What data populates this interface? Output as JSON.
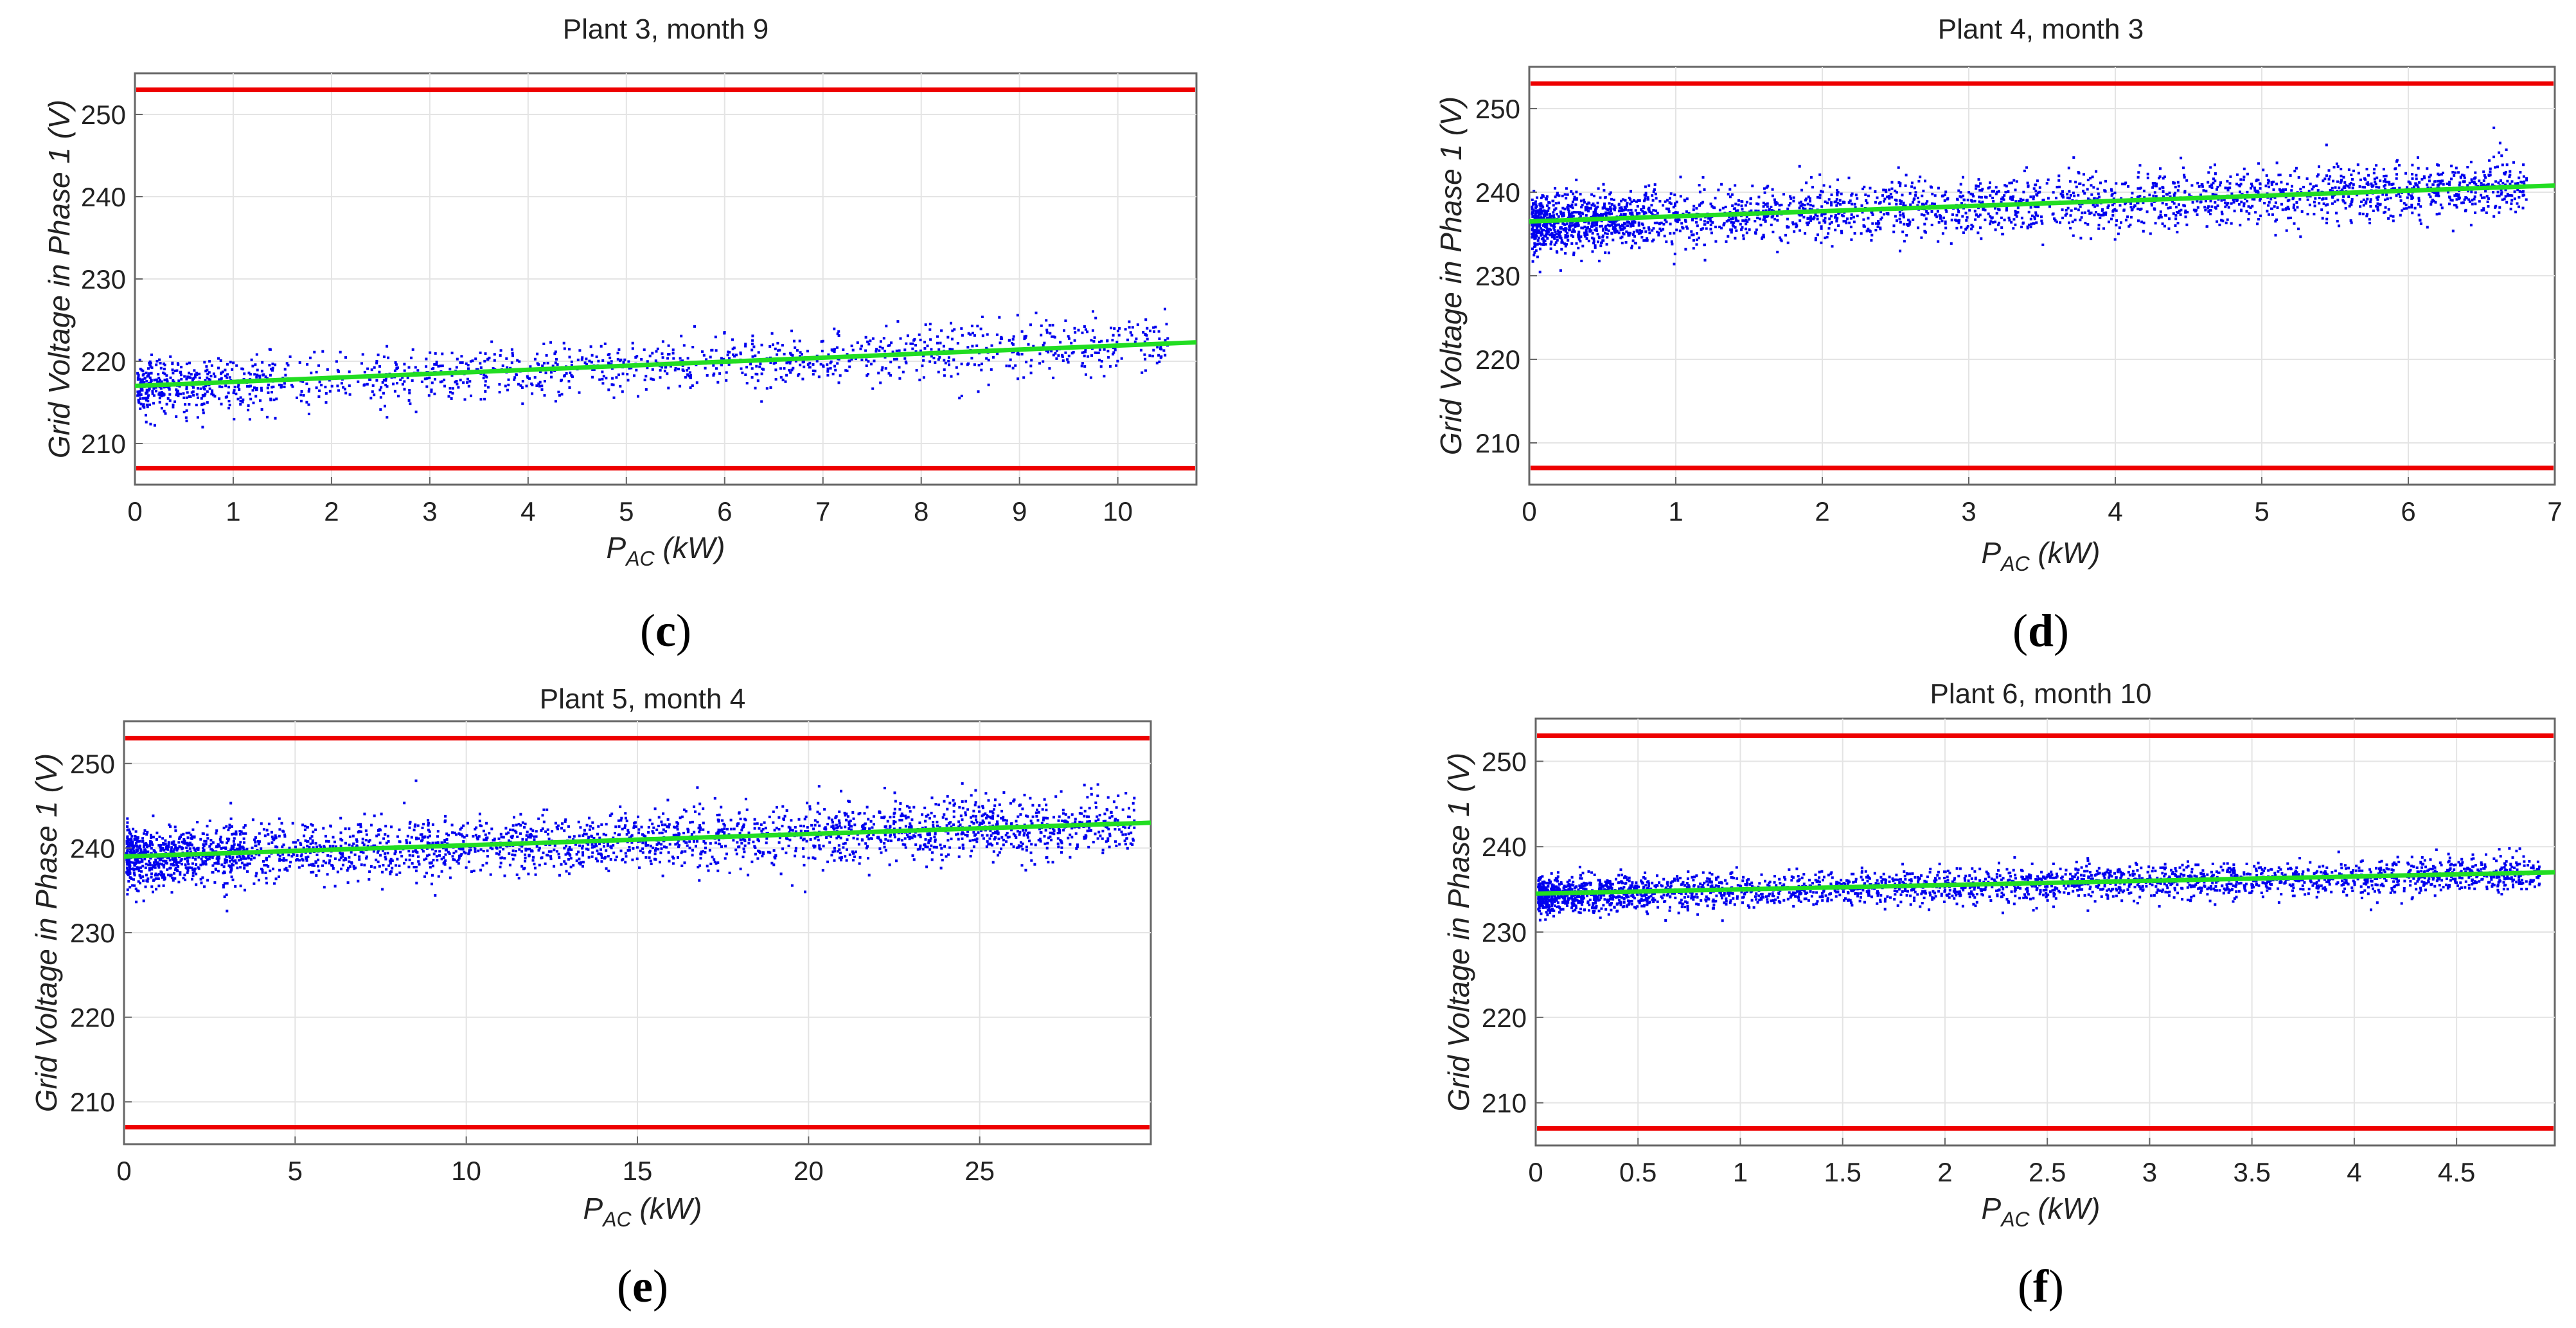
{
  "figure": {
    "background": "#ffffff"
  },
  "colors": {
    "scatter": "#0000ee",
    "fit": "#22dd22",
    "limits": "#ee0000",
    "grid": "#e4e4e4",
    "frame": "#666666"
  },
  "common": {
    "ylabel": "Grid Voltage in Phase 1 (V)",
    "xlabel_main": "P",
    "xlabel_sub": "AC",
    "xlabel_unit": " (kW)",
    "voltage_limits_V": [
      207,
      253
    ]
  },
  "panels": [
    {
      "paren_open": "(",
      "letter": "c",
      "paren_close": ")"
    },
    {
      "paren_open": "(",
      "letter": "d",
      "paren_close": ")"
    },
    {
      "paren_open": "(",
      "letter": "e",
      "paren_close": ")"
    },
    {
      "paren_open": "(",
      "letter": "f",
      "paren_close": ")"
    }
  ],
  "chart_data": [
    {
      "type": "scatter",
      "title": "Plant 3, month 9",
      "xlabel": "P_AC (kW)",
      "ylabel": "Grid Voltage in Phase 1 (V)",
      "xlim": [
        0,
        10.8
      ],
      "ylim": [
        205,
        255
      ],
      "xticks": [
        0,
        1,
        2,
        3,
        4,
        5,
        6,
        7,
        8,
        9,
        10
      ],
      "xtick_labels": [
        "0",
        "1",
        "2",
        "3",
        "4",
        "5",
        "6",
        "7",
        "8",
        "9",
        "10"
      ],
      "yticks": [
        210,
        220,
        230,
        240,
        250
      ],
      "ytick_labels": [
        "210",
        "220",
        "230",
        "240",
        "250"
      ],
      "grid": true,
      "limit_lines": [
        207,
        253
      ],
      "fit_line": {
        "x": [
          0,
          10.8
        ],
        "y": [
          217,
          222.3
        ]
      },
      "scatter_cloud": {
        "x_range": [
          0,
          10.5
        ],
        "trend_y": [
          217,
          222.3
        ],
        "spread_V": 2.2,
        "approx_points": 1500
      }
    },
    {
      "type": "scatter",
      "title": "Plant 4, month 3",
      "xlabel": "P_AC (kW)",
      "ylabel": "Grid Voltage in Phase 1 (V)",
      "xlim": [
        0,
        7
      ],
      "ylim": [
        205,
        255
      ],
      "xticks": [
        0,
        1,
        2,
        3,
        4,
        5,
        6,
        7
      ],
      "xtick_labels": [
        "0",
        "1",
        "2",
        "3",
        "4",
        "5",
        "6",
        "7"
      ],
      "yticks": [
        210,
        220,
        230,
        240,
        250
      ],
      "ytick_labels": [
        "210",
        "220",
        "230",
        "240",
        "250"
      ],
      "grid": true,
      "limit_lines": [
        207,
        253
      ],
      "fit_line": {
        "x": [
          0,
          7
        ],
        "y": [
          236.5,
          240.8
        ]
      },
      "scatter_cloud": {
        "x_range": [
          0,
          6.8
        ],
        "trend_y": [
          236.5,
          240.8
        ],
        "spread_V": 2.3,
        "approx_points": 2800
      }
    },
    {
      "type": "scatter",
      "title": "Plant 5, month 4",
      "xlabel": "P_AC (kW)",
      "ylabel": "Grid Voltage in Phase 1 (V)",
      "xlim": [
        0,
        30
      ],
      "ylim": [
        205,
        255
      ],
      "xticks": [
        0,
        5,
        10,
        15,
        20,
        25
      ],
      "xtick_labels": [
        "0",
        "5",
        "10",
        "15",
        "20",
        "25"
      ],
      "yticks": [
        210,
        220,
        230,
        240,
        250
      ],
      "ytick_labels": [
        "210",
        "220",
        "230",
        "240",
        "250"
      ],
      "grid": true,
      "limit_lines": [
        207,
        253
      ],
      "fit_line": {
        "x": [
          0,
          30
        ],
        "y": [
          239,
          243
        ]
      },
      "scatter_cloud": {
        "x_range": [
          0,
          29.5
        ],
        "trend_y": [
          239,
          243
        ],
        "spread_V": 2.4,
        "approx_points": 2800
      }
    },
    {
      "type": "scatter",
      "title": "Plant 6, month 10",
      "xlabel": "P_AC (kW)",
      "ylabel": "Grid Voltage in Phase 1 (V)",
      "xlim": [
        0,
        4.98
      ],
      "ylim": [
        205,
        255
      ],
      "xticks": [
        0,
        0.5,
        1,
        1.5,
        2,
        2.5,
        3,
        3.5,
        4,
        4.5
      ],
      "xtick_labels": [
        "0",
        "0.5",
        "1",
        "1.5",
        "2",
        "2.5",
        "3",
        "3.5",
        "4",
        "4.5"
      ],
      "yticks": [
        210,
        220,
        230,
        240,
        250
      ],
      "ytick_labels": [
        "210",
        "220",
        "230",
        "240",
        "250"
      ],
      "grid": true,
      "limit_lines": [
        207,
        253
      ],
      "fit_line": {
        "x": [
          0,
          4.98
        ],
        "y": [
          234.5,
          237
        ]
      },
      "scatter_cloud": {
        "x_range": [
          0,
          4.9
        ],
        "trend_y": [
          234.5,
          237
        ],
        "spread_V": 1.4,
        "approx_points": 2800
      }
    }
  ]
}
